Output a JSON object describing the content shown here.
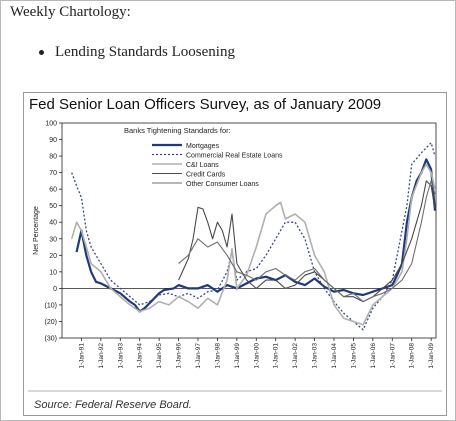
{
  "page": {
    "heading": "Weekly Chartology:",
    "bullet": "Lending Standards Loosening"
  },
  "chart_data": {
    "type": "line",
    "title": "Fed Senior Loan Officers Survey, as of January 2009",
    "ylabel": "Net Percentage",
    "xlabel": "",
    "source": "Source: Federal Reserve Board.",
    "legend_title": "Banks Tightening Standards for:",
    "legend_position": "top-center",
    "ylim": [
      -30,
      100
    ],
    "yticks": [
      100,
      90,
      80,
      70,
      60,
      50,
      40,
      30,
      20,
      10,
      0,
      -10,
      -20,
      -30
    ],
    "ytick_labels": [
      "100",
      "90",
      "80",
      "70",
      "60",
      "50",
      "40",
      "30",
      "20",
      "10",
      "0",
      "(10)",
      "(20)",
      "(30)"
    ],
    "xlim": [
      1990.0,
      2009.25
    ],
    "xticks": [
      1991,
      1992,
      1993,
      1994,
      1995,
      1996,
      1997,
      1998,
      1999,
      2000,
      2001,
      2002,
      2003,
      2004,
      2005,
      2006,
      2007,
      2008,
      2009
    ],
    "xtick_labels": [
      "1-Jan-91",
      "1-Jan-92",
      "1-Jan-93",
      "1-Jan-94",
      "1-Jan-95",
      "1-Jan-96",
      "1-Jan-97",
      "1-Jan-98",
      "1-Jan-99",
      "1-Jan-00",
      "1-Jan-01",
      "1-Jan-02",
      "1-Jan-03",
      "1-Jan-04",
      "1-Jan-05",
      "1-Jan-06",
      "1-Jan-07",
      "1-Jan-08",
      "1-Jan-09"
    ],
    "grid": false,
    "series": [
      {
        "name": "Mortgages",
        "color": "#1f3a78",
        "dash": "solid",
        "width": 2.2,
        "points": [
          [
            1990.75,
            22
          ],
          [
            1991.0,
            35
          ],
          [
            1991.25,
            20
          ],
          [
            1991.5,
            10
          ],
          [
            1991.75,
            4
          ],
          [
            1992.0,
            3
          ],
          [
            1992.5,
            0
          ],
          [
            1993.0,
            -3
          ],
          [
            1993.5,
            -8
          ],
          [
            1993.75,
            -10
          ],
          [
            1994.0,
            -14
          ],
          [
            1994.25,
            -12
          ],
          [
            1994.75,
            -6
          ],
          [
            1995.0,
            -3
          ],
          [
            1995.25,
            -1
          ],
          [
            1995.75,
            0
          ],
          [
            1996.0,
            2
          ],
          [
            1996.5,
            0
          ],
          [
            1997.0,
            0
          ],
          [
            1997.5,
            2
          ],
          [
            1998.0,
            -2
          ],
          [
            1998.5,
            2
          ],
          [
            1999.0,
            0
          ],
          [
            1999.5,
            3
          ],
          [
            2000.0,
            6
          ],
          [
            2000.5,
            7
          ],
          [
            2001.0,
            5
          ],
          [
            2001.5,
            8
          ],
          [
            2002.0,
            4
          ],
          [
            2002.5,
            2
          ],
          [
            2003.0,
            6
          ],
          [
            2003.5,
            1
          ],
          [
            2004.0,
            -2
          ],
          [
            2004.5,
            -1
          ],
          [
            2005.0,
            -3
          ],
          [
            2005.5,
            -4
          ],
          [
            2006.0,
            -2
          ],
          [
            2006.5,
            0
          ],
          [
            2007.0,
            2
          ],
          [
            2007.25,
            8
          ],
          [
            2007.5,
            15
          ],
          [
            2007.75,
            40
          ],
          [
            2008.0,
            55
          ],
          [
            2008.25,
            65
          ],
          [
            2008.5,
            70
          ],
          [
            2008.75,
            78
          ],
          [
            2009.0,
            72
          ],
          [
            2009.2,
            47
          ]
        ]
      },
      {
        "name": "Commercial Real Estate Loans",
        "color": "#3a4a86",
        "dash": "2,2",
        "width": 1.3,
        "points": [
          [
            1990.5,
            70
          ],
          [
            1990.75,
            62
          ],
          [
            1991.0,
            55
          ],
          [
            1991.25,
            35
          ],
          [
            1991.5,
            25
          ],
          [
            1992.0,
            15
          ],
          [
            1992.5,
            5
          ],
          [
            1993.0,
            0
          ],
          [
            1993.5,
            -5
          ],
          [
            1994.0,
            -10
          ],
          [
            1994.5,
            -8
          ],
          [
            1995.0,
            -4
          ],
          [
            1995.5,
            -3
          ],
          [
            1996.0,
            -5
          ],
          [
            1996.5,
            -3
          ],
          [
            1997.0,
            -6
          ],
          [
            1997.5,
            -2
          ],
          [
            1998.0,
            -1
          ],
          [
            1998.5,
            10
          ],
          [
            1998.75,
            22
          ],
          [
            1999.0,
            5
          ],
          [
            1999.5,
            10
          ],
          [
            2000.0,
            12
          ],
          [
            2000.5,
            20
          ],
          [
            2001.0,
            30
          ],
          [
            2001.5,
            40
          ],
          [
            2002.0,
            40
          ],
          [
            2002.5,
            30
          ],
          [
            2003.0,
            10
          ],
          [
            2003.5,
            0
          ],
          [
            2004.0,
            -8
          ],
          [
            2004.5,
            -15
          ],
          [
            2005.0,
            -20
          ],
          [
            2005.5,
            -25
          ],
          [
            2006.0,
            -12
          ],
          [
            2006.5,
            -5
          ],
          [
            2007.0,
            5
          ],
          [
            2007.5,
            35
          ],
          [
            2007.75,
            50
          ],
          [
            2008.0,
            75
          ],
          [
            2008.5,
            82
          ],
          [
            2008.75,
            85
          ],
          [
            2009.0,
            88
          ],
          [
            2009.2,
            80
          ]
        ]
      },
      {
        "name": "C&I Loans",
        "color": "#b0b0b0",
        "dash": "solid",
        "width": 1.6,
        "points": [
          [
            1990.5,
            30
          ],
          [
            1990.75,
            40
          ],
          [
            1991.0,
            35
          ],
          [
            1991.25,
            25
          ],
          [
            1991.5,
            15
          ],
          [
            1992.0,
            10
          ],
          [
            1992.5,
            0
          ],
          [
            1993.0,
            -5
          ],
          [
            1993.5,
            -10
          ],
          [
            1994.0,
            -14
          ],
          [
            1994.5,
            -12
          ],
          [
            1995.0,
            -8
          ],
          [
            1995.5,
            -10
          ],
          [
            1996.0,
            -5
          ],
          [
            1996.5,
            -8
          ],
          [
            1997.0,
            -12
          ],
          [
            1997.5,
            -6
          ],
          [
            1998.0,
            -10
          ],
          [
            1998.5,
            5
          ],
          [
            1998.75,
            24
          ],
          [
            1999.0,
            0
          ],
          [
            1999.5,
            8
          ],
          [
            2000.0,
            25
          ],
          [
            2000.5,
            45
          ],
          [
            2001.0,
            50
          ],
          [
            2001.25,
            52
          ],
          [
            2001.5,
            42
          ],
          [
            2002.0,
            45
          ],
          [
            2002.5,
            40
          ],
          [
            2003.0,
            20
          ],
          [
            2003.5,
            10
          ],
          [
            2004.0,
            -10
          ],
          [
            2004.5,
            -18
          ],
          [
            2005.0,
            -20
          ],
          [
            2005.5,
            -22
          ],
          [
            2006.0,
            -10
          ],
          [
            2006.5,
            -5
          ],
          [
            2007.0,
            0
          ],
          [
            2007.5,
            10
          ],
          [
            2007.75,
            30
          ],
          [
            2008.0,
            55
          ],
          [
            2008.5,
            70
          ],
          [
            2008.75,
            75
          ],
          [
            2009.0,
            70
          ],
          [
            2009.2,
            60
          ]
        ]
      },
      {
        "name": "Credit Cards",
        "color": "#4a4a4a",
        "dash": "solid",
        "width": 1.1,
        "points": [
          [
            1996.0,
            5
          ],
          [
            1996.5,
            18
          ],
          [
            1996.75,
            30
          ],
          [
            1997.0,
            49
          ],
          [
            1997.25,
            48
          ],
          [
            1997.5,
            40
          ],
          [
            1997.75,
            30
          ],
          [
            1998.0,
            40
          ],
          [
            1998.25,
            35
          ],
          [
            1998.5,
            25
          ],
          [
            1998.75,
            45
          ],
          [
            1999.0,
            15
          ],
          [
            1999.5,
            5
          ],
          [
            2000.0,
            0
          ],
          [
            2000.5,
            5
          ],
          [
            2001.0,
            5
          ],
          [
            2001.5,
            0
          ],
          [
            2002.0,
            2
          ],
          [
            2002.5,
            8
          ],
          [
            2003.0,
            10
          ],
          [
            2003.5,
            5
          ],
          [
            2004.0,
            0
          ],
          [
            2004.5,
            -5
          ],
          [
            2005.0,
            -5
          ],
          [
            2005.5,
            -8
          ],
          [
            2006.0,
            -5
          ],
          [
            2006.5,
            0
          ],
          [
            2007.0,
            5
          ],
          [
            2007.5,
            15
          ],
          [
            2008.0,
            30
          ],
          [
            2008.5,
            50
          ],
          [
            2008.75,
            65
          ],
          [
            2009.0,
            62
          ],
          [
            2009.2,
            48
          ]
        ]
      },
      {
        "name": "Other Consumer Loans",
        "color": "#6e6e6e",
        "dash": "solid",
        "width": 1.1,
        "points": [
          [
            1996.0,
            15
          ],
          [
            1996.5,
            20
          ],
          [
            1997.0,
            30
          ],
          [
            1997.5,
            25
          ],
          [
            1998.0,
            28
          ],
          [
            1998.5,
            20
          ],
          [
            1999.0,
            10
          ],
          [
            1999.5,
            8
          ],
          [
            2000.0,
            5
          ],
          [
            2000.5,
            10
          ],
          [
            2001.0,
            12
          ],
          [
            2001.5,
            8
          ],
          [
            2002.0,
            5
          ],
          [
            2002.5,
            10
          ],
          [
            2003.0,
            12
          ],
          [
            2003.5,
            5
          ],
          [
            2004.0,
            0
          ],
          [
            2004.5,
            -5
          ],
          [
            2005.0,
            -3
          ],
          [
            2005.5,
            -8
          ],
          [
            2006.0,
            -5
          ],
          [
            2006.5,
            -3
          ],
          [
            2007.0,
            0
          ],
          [
            2007.5,
            5
          ],
          [
            2008.0,
            15
          ],
          [
            2008.5,
            40
          ],
          [
            2008.75,
            55
          ],
          [
            2009.0,
            65
          ],
          [
            2009.2,
            57
          ]
        ]
      }
    ]
  }
}
